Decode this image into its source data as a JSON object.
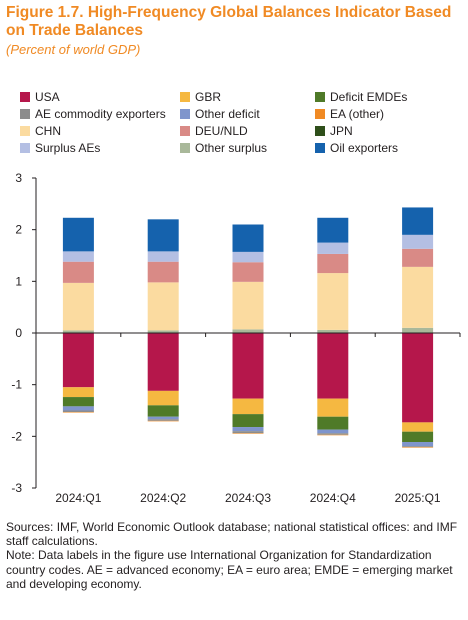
{
  "header": {
    "title": "Figure 1.7. High-Frequency Global Balances Indicator Based on Trade Balances",
    "subtitle": "(Percent of world GDP)"
  },
  "notes": {
    "sources": "Sources: IMF, World Economic Outlook database; national statistical offices: and IMF staff calculations.",
    "note": "Note: Data labels in the figure use International Organization for Standardization country codes. AE = advanced economy; EA = euro area; EMDE = emerging market and developing economy."
  },
  "chart_data": {
    "type": "bar",
    "stacked": true,
    "categories": [
      "2024:Q1",
      "2024:Q2",
      "2024:Q3",
      "2024:Q4",
      "2025:Q1"
    ],
    "ylim": [
      -3,
      3
    ],
    "yticks": [
      -3,
      -2,
      -1,
      0,
      1,
      2,
      3
    ],
    "grid": false,
    "legend_position": "top",
    "series": [
      {
        "name": "USA",
        "color": "#b5174b",
        "values": [
          -1.05,
          -1.12,
          -1.27,
          -1.27,
          -1.73
        ]
      },
      {
        "name": "GBR",
        "color": "#f5b841",
        "values": [
          -0.19,
          -0.28,
          -0.3,
          -0.35,
          -0.18
        ]
      },
      {
        "name": "Deficit EMDEs",
        "color": "#4f7a28",
        "values": [
          -0.18,
          -0.22,
          -0.25,
          -0.25,
          -0.2
        ]
      },
      {
        "name": "AE commodity exporters",
        "color": "#8c8c8c",
        "values": [
          -0.03,
          -0.03,
          -0.04,
          -0.03,
          -0.02
        ]
      },
      {
        "name": "Other deficit",
        "color": "#7f95cc",
        "values": [
          -0.08,
          -0.05,
          -0.08,
          -0.07,
          -0.08
        ]
      },
      {
        "name": "EA (other)",
        "color": "#f08a24",
        "values": [
          -0.01,
          -0.01,
          -0.01,
          -0.01,
          -0.01
        ]
      },
      {
        "name": "CHN",
        "color": "#fbdba0",
        "values": [
          0.92,
          0.93,
          0.92,
          1.1,
          1.18
        ]
      },
      {
        "name": "DEU/NLD",
        "color": "#d98a86",
        "values": [
          0.41,
          0.4,
          0.38,
          0.37,
          0.35
        ]
      },
      {
        "name": "JPN",
        "color": "#2f4f1a",
        "values": [
          0.0,
          0.0,
          0.0,
          0.0,
          0.0
        ]
      },
      {
        "name": "Surplus AEs",
        "color": "#b4bfe3",
        "values": [
          0.2,
          0.2,
          0.2,
          0.22,
          0.27
        ]
      },
      {
        "name": "Other surplus",
        "color": "#a9b89a",
        "values": [
          0.05,
          0.05,
          0.07,
          0.06,
          0.1
        ]
      },
      {
        "name": "Oil exporters",
        "color": "#1562ad",
        "values": [
          0.65,
          0.62,
          0.53,
          0.48,
          0.53
        ]
      }
    ],
    "stack_order": {
      "positive": [
        "Other surplus",
        "CHN",
        "DEU/NLD",
        "Surplus AEs",
        "Oil exporters"
      ],
      "negative": [
        "USA",
        "GBR",
        "Deficit EMDEs",
        "Other deficit",
        "AE commodity exporters"
      ]
    }
  }
}
